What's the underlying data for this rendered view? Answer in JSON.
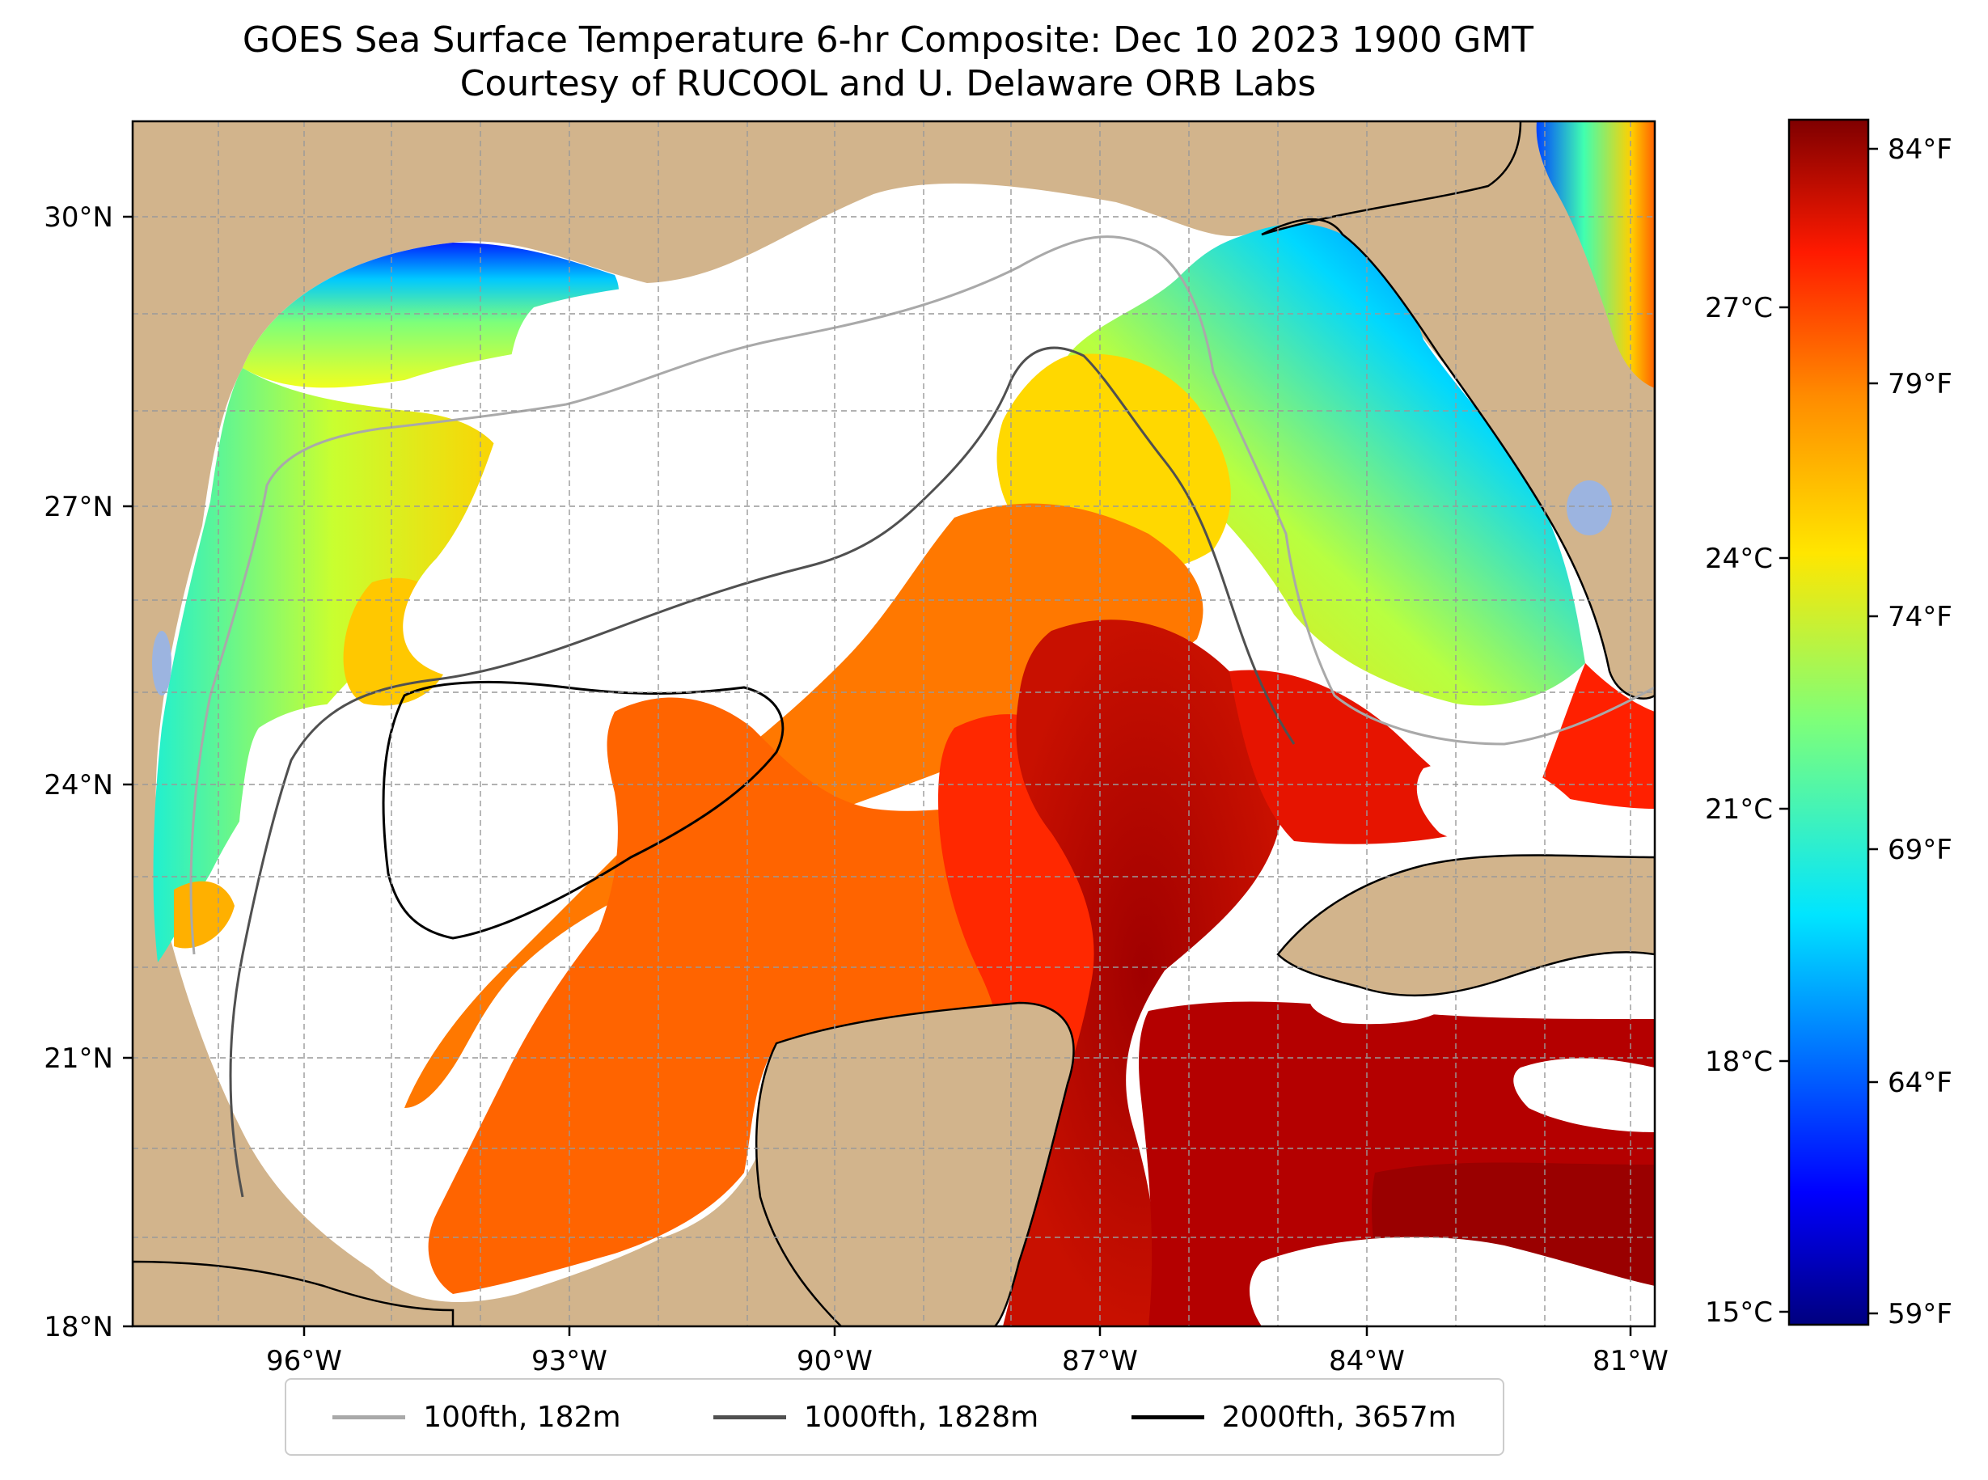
{
  "title": {
    "line1": "GOES Sea Surface Temperature 6-hr Composite: Dec 10 2023 1900 GMT",
    "line2": "Courtesy of RUCOOL and U. Delaware ORB Labs"
  },
  "map": {
    "longitude_ticks": [
      "96°W",
      "93°W",
      "90°W",
      "87°W",
      "84°W",
      "81°W"
    ],
    "latitude_ticks": [
      "30°N",
      "27°N",
      "24°N",
      "21°N",
      "18°N"
    ],
    "extent": {
      "lon_min": -98,
      "lon_max": -80.5,
      "lat_min": 18,
      "lat_max": 31
    },
    "land_color": "#d2b48c",
    "cloud_color": "#ffffff",
    "lake_color": "#9cb4e0"
  },
  "colorbar": {
    "celsius_ticks": [
      "27°C",
      "24°C",
      "21°C",
      "18°C",
      "15°C"
    ],
    "fahrenheit_ticks": [
      "84°F",
      "79°F",
      "74°F",
      "69°F",
      "64°F",
      "59°F"
    ],
    "colormap": "jet",
    "range_f": [
      58.6,
      85
    ]
  },
  "legend": {
    "items": [
      {
        "label": "100fth, 182m",
        "color": "#a9a9a9"
      },
      {
        "label": "1000fth, 1828m",
        "color": "#505050"
      },
      {
        "label": "2000fth, 3657m",
        "color": "#000000"
      }
    ]
  }
}
